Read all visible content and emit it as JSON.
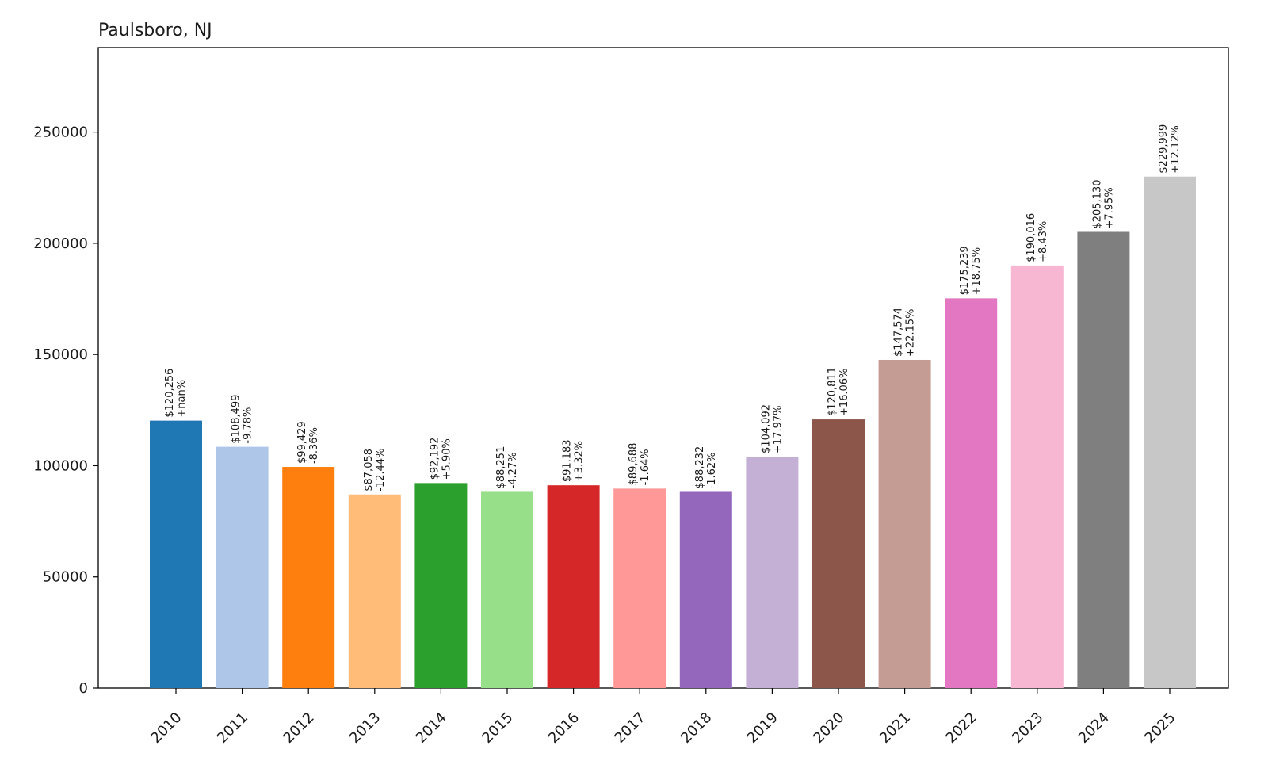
{
  "chart_data": {
    "type": "bar",
    "title": "Paulsboro, NJ",
    "xlabel": "",
    "ylabel": "",
    "ylim": [
      0,
      288000
    ],
    "yticks": [
      0,
      50000,
      100000,
      150000,
      200000,
      250000
    ],
    "ytick_labels": [
      "0",
      "50000",
      "100000",
      "150000",
      "200000",
      "250000"
    ],
    "grid": false,
    "legend": "none",
    "categories": [
      "2010",
      "2011",
      "2012",
      "2013",
      "2014",
      "2015",
      "2016",
      "2017",
      "2018",
      "2019",
      "2020",
      "2021",
      "2022",
      "2023",
      "2024",
      "2025"
    ],
    "values": [
      120256,
      108499,
      99429,
      87058,
      92192,
      88251,
      91183,
      89688,
      88232,
      104092,
      120811,
      147574,
      175239,
      190016,
      205130,
      229999
    ],
    "value_labels": [
      "$120,256",
      "$108,499",
      "$99,429",
      "$87,058",
      "$92,192",
      "$88,251",
      "$91,183",
      "$89,688",
      "$88,232",
      "$104,092",
      "$120,811",
      "$147,574",
      "$175,239",
      "$190,016",
      "$205,130",
      "$229,999"
    ],
    "change_labels": [
      "+nan%",
      "-9.78%",
      "-8.36%",
      "-12.44%",
      "+5.90%",
      "-4.27%",
      "+3.32%",
      "-1.64%",
      "-1.62%",
      "+17.97%",
      "+16.06%",
      "+22.15%",
      "+18.75%",
      "+8.43%",
      "+7.95%",
      "+12.12%"
    ],
    "colors": [
      "#1f77b4",
      "#aec7e8",
      "#ff7f0e",
      "#ffbb78",
      "#2ca02c",
      "#98df8a",
      "#d62728",
      "#ff9896",
      "#9467bd",
      "#c5b0d5",
      "#8c564b",
      "#c49c94",
      "#e377c2",
      "#f7b6d2",
      "#7f7f7f",
      "#c7c7c7"
    ]
  }
}
